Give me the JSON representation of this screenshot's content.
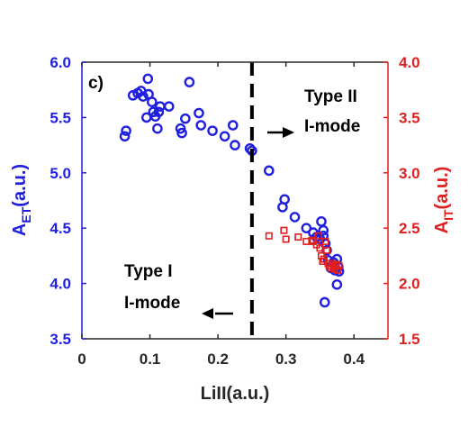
{
  "chart_data": {
    "type": "scatter",
    "panel_label": "c)",
    "xlabel": "LiII(a.u.)",
    "ylabel_left": {
      "main": "A",
      "sub": "ET",
      "suffix": "(a.u.)"
    },
    "ylabel_right": {
      "main": "A",
      "sub": "IT",
      "suffix": "(a.u.)"
    },
    "xlim": [
      0,
      0.45
    ],
    "ylim_left": [
      3.5,
      6.0
    ],
    "ylim_right": [
      1.5,
      4.0
    ],
    "xticks": [
      "0",
      "0.1",
      "0.2",
      "0.3",
      "0.4"
    ],
    "xtick_values": [
      0,
      0.1,
      0.2,
      0.3,
      0.4
    ],
    "yticks_left": [
      "3.5",
      "4.0",
      "4.5",
      "5.0",
      "5.5",
      "6.0"
    ],
    "ytick_left_values": [
      3.5,
      4.0,
      4.5,
      5.0,
      5.5,
      6.0
    ],
    "yticks_right": [
      "1.5",
      "2.0",
      "2.5",
      "3.0",
      "3.5",
      "4.0"
    ],
    "ytick_right_values": [
      1.5,
      2.0,
      2.5,
      3.0,
      3.5,
      4.0
    ],
    "grid": false,
    "colors": {
      "left_axis": "#1f1fe0",
      "right_axis": "#e01f1f",
      "divider": "#000000"
    },
    "divider_x": 0.25,
    "annotations": [
      {
        "lines": [
          "Type II",
          "I-mode"
        ],
        "arrow": "right"
      },
      {
        "lines": [
          "Type I",
          "I-mode"
        ],
        "arrow": "left"
      }
    ],
    "series": [
      {
        "axis": "left",
        "marker": "circle",
        "points": [
          [
            0.063,
            5.33
          ],
          [
            0.065,
            5.38
          ],
          [
            0.075,
            5.7
          ],
          [
            0.082,
            5.72
          ],
          [
            0.087,
            5.74
          ],
          [
            0.09,
            5.69
          ],
          [
            0.095,
            5.5
          ],
          [
            0.097,
            5.85
          ],
          [
            0.098,
            5.71
          ],
          [
            0.103,
            5.64
          ],
          [
            0.105,
            5.55
          ],
          [
            0.108,
            5.51
          ],
          [
            0.111,
            5.4
          ],
          [
            0.113,
            5.55
          ],
          [
            0.115,
            5.6
          ],
          [
            0.128,
            5.6
          ],
          [
            0.145,
            5.4
          ],
          [
            0.147,
            5.36
          ],
          [
            0.152,
            5.49
          ],
          [
            0.158,
            5.82
          ],
          [
            0.172,
            5.54
          ],
          [
            0.175,
            5.43
          ],
          [
            0.192,
            5.38
          ],
          [
            0.21,
            5.33
          ],
          [
            0.222,
            5.43
          ],
          [
            0.225,
            5.25
          ],
          [
            0.247,
            5.22
          ],
          [
            0.25,
            5.2
          ],
          [
            0.275,
            5.02
          ],
          [
            0.295,
            4.69
          ],
          [
            0.298,
            4.76
          ],
          [
            0.313,
            4.6
          ],
          [
            0.33,
            4.5
          ],
          [
            0.34,
            4.46
          ],
          [
            0.345,
            4.42
          ],
          [
            0.35,
            4.4
          ],
          [
            0.352,
            4.56
          ],
          [
            0.355,
            4.48
          ],
          [
            0.355,
            4.43
          ],
          [
            0.358,
            4.36
          ],
          [
            0.36,
            4.3
          ],
          [
            0.357,
            3.83
          ],
          [
            0.362,
            4.21
          ],
          [
            0.366,
            4.14
          ],
          [
            0.37,
            4.19
          ],
          [
            0.372,
            4.12
          ],
          [
            0.375,
            4.22
          ],
          [
            0.377,
            4.15
          ],
          [
            0.378,
            4.11
          ],
          [
            0.375,
            3.99
          ]
        ]
      },
      {
        "axis": "right",
        "marker": "square",
        "points": [
          [
            0.275,
            2.43
          ],
          [
            0.297,
            2.48
          ],
          [
            0.3,
            2.4
          ],
          [
            0.318,
            2.42
          ],
          [
            0.33,
            2.38
          ],
          [
            0.338,
            2.39
          ],
          [
            0.34,
            2.38
          ],
          [
            0.345,
            2.35
          ],
          [
            0.348,
            2.43
          ],
          [
            0.35,
            2.32
          ],
          [
            0.352,
            2.25
          ],
          [
            0.354,
            2.2
          ],
          [
            0.356,
            2.22
          ],
          [
            0.358,
            2.38
          ],
          [
            0.36,
            2.3
          ],
          [
            0.362,
            2.18
          ],
          [
            0.364,
            2.16
          ],
          [
            0.366,
            2.14
          ],
          [
            0.368,
            2.18
          ],
          [
            0.37,
            2.15
          ],
          [
            0.372,
            2.13
          ],
          [
            0.374,
            2.17
          ],
          [
            0.376,
            2.12
          ],
          [
            0.378,
            2.16
          ]
        ]
      }
    ]
  }
}
